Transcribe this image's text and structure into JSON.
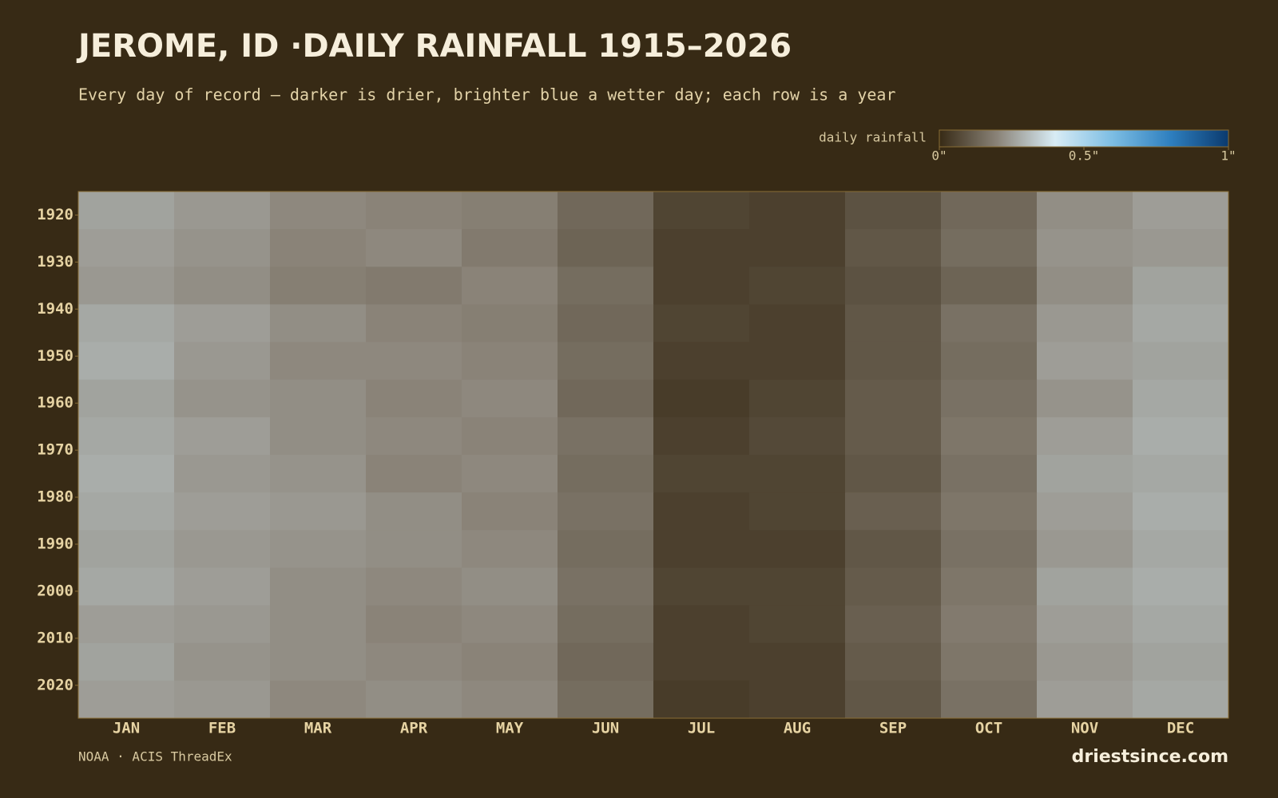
{
  "chart_data": {
    "type": "heatmap",
    "title": "JEROME, ID ·DAILY RAINFALL 1915–2026",
    "subtitle": "Every day of record — darker is drier, brighter blue a wetter day; each row is a year",
    "legend_label": "daily rainfall",
    "colormap": [
      "#372a15",
      "#8a8378",
      "#d8ecf5",
      "#7cbde3",
      "#2e7fbf",
      "#0b3a6e"
    ],
    "clim": [
      0,
      1
    ],
    "cticks": [
      {
        "value": 0,
        "label": "0\""
      },
      {
        "value": 0.5,
        "label": "0.5\""
      },
      {
        "value": 1,
        "label": "1\""
      }
    ],
    "categories": [
      "JAN",
      "FEB",
      "MAR",
      "APR",
      "MAY",
      "JUN",
      "JUL",
      "AUG",
      "SEP",
      "OCT",
      "NOV",
      "DEC"
    ],
    "years": [
      1915,
      1923,
      1931,
      1939,
      1947,
      1955,
      1963,
      1971,
      1979,
      1987,
      1995,
      2003,
      2011,
      2019
    ],
    "ylim": [
      1915,
      2027
    ],
    "yticks": [
      1920,
      1930,
      1940,
      1950,
      1960,
      1970,
      1980,
      1990,
      2000,
      2010,
      2020
    ],
    "z": [
      [
        0.26,
        0.24,
        0.21,
        0.2,
        0.19,
        0.14,
        0.06,
        0.05,
        0.09,
        0.14,
        0.22,
        0.25
      ],
      [
        0.25,
        0.23,
        0.2,
        0.21,
        0.18,
        0.13,
        0.05,
        0.05,
        0.1,
        0.15,
        0.23,
        0.24
      ],
      [
        0.24,
        0.22,
        0.19,
        0.18,
        0.2,
        0.15,
        0.05,
        0.06,
        0.09,
        0.13,
        0.22,
        0.26
      ],
      [
        0.27,
        0.25,
        0.22,
        0.2,
        0.19,
        0.14,
        0.06,
        0.05,
        0.1,
        0.16,
        0.24,
        0.27
      ],
      [
        0.28,
        0.24,
        0.21,
        0.21,
        0.2,
        0.15,
        0.05,
        0.05,
        0.1,
        0.15,
        0.25,
        0.26
      ],
      [
        0.26,
        0.23,
        0.22,
        0.2,
        0.21,
        0.14,
        0.04,
        0.06,
        0.11,
        0.16,
        0.23,
        0.27
      ],
      [
        0.27,
        0.25,
        0.22,
        0.21,
        0.2,
        0.16,
        0.05,
        0.07,
        0.11,
        0.17,
        0.25,
        0.28
      ],
      [
        0.28,
        0.24,
        0.23,
        0.2,
        0.21,
        0.15,
        0.06,
        0.06,
        0.1,
        0.16,
        0.26,
        0.27
      ],
      [
        0.27,
        0.25,
        0.24,
        0.22,
        0.2,
        0.16,
        0.05,
        0.06,
        0.12,
        0.17,
        0.25,
        0.28
      ],
      [
        0.26,
        0.24,
        0.23,
        0.22,
        0.21,
        0.15,
        0.05,
        0.05,
        0.1,
        0.16,
        0.24,
        0.27
      ],
      [
        0.27,
        0.25,
        0.22,
        0.21,
        0.22,
        0.16,
        0.06,
        0.06,
        0.11,
        0.17,
        0.26,
        0.28
      ],
      [
        0.25,
        0.24,
        0.22,
        0.2,
        0.21,
        0.15,
        0.05,
        0.06,
        0.12,
        0.18,
        0.25,
        0.27
      ],
      [
        0.26,
        0.23,
        0.22,
        0.21,
        0.2,
        0.14,
        0.05,
        0.05,
        0.11,
        0.17,
        0.24,
        0.26
      ],
      [
        0.25,
        0.24,
        0.21,
        0.22,
        0.21,
        0.15,
        0.04,
        0.05,
        0.1,
        0.16,
        0.25,
        0.27
      ]
    ],
    "source": "NOAA · ACIS ThreadEx",
    "brand": "driestsince.com"
  }
}
